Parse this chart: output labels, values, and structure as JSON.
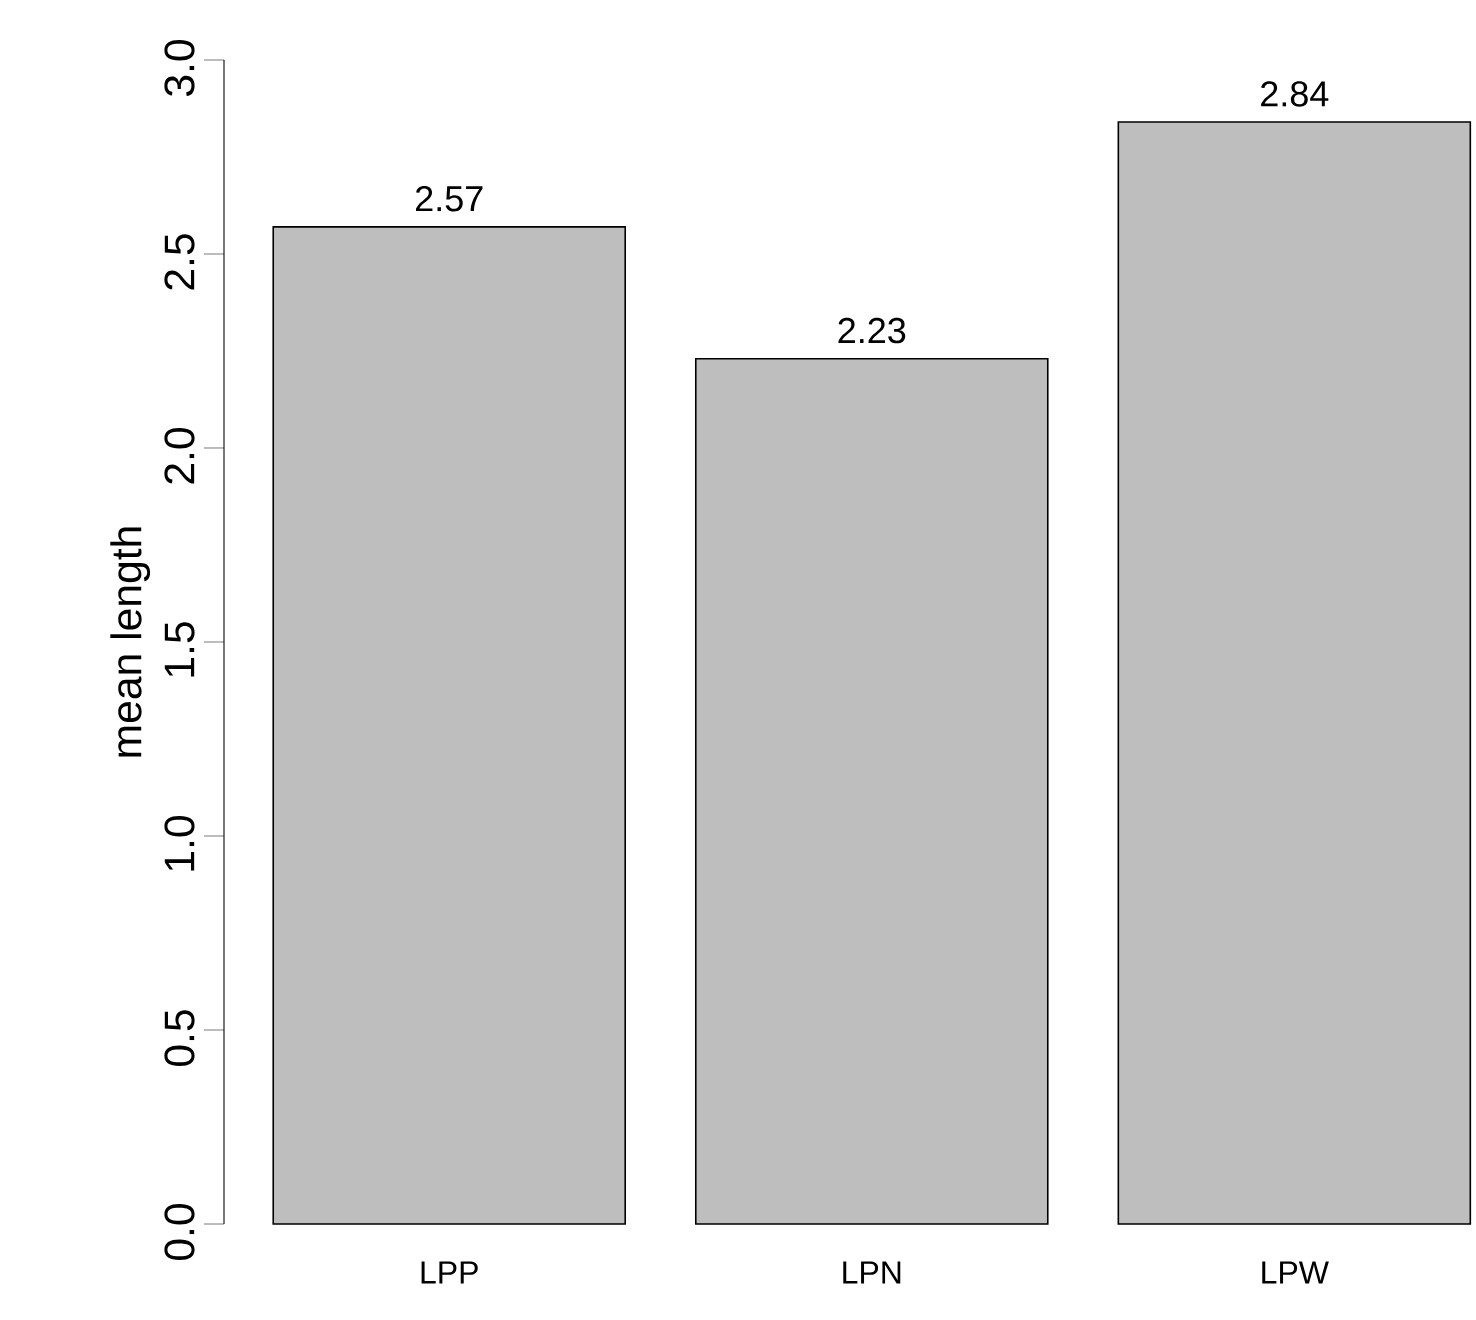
{
  "chart_data": {
    "type": "bar",
    "ylabel": "mean length",
    "categories": [
      "LPP",
      "LPN",
      "LPW"
    ],
    "values": [
      2.57,
      2.23,
      2.84
    ],
    "color": "#bebebe",
    "data_labels": true,
    "ylim": [
      0,
      3
    ],
    "yticks": [
      {
        "value": 0,
        "label": "0.0"
      },
      0.5,
      {
        "value": 1,
        "label": "1.0"
      },
      1.5,
      {
        "value": 2,
        "label": "2.0"
      },
      2.5,
      {
        "value": 3,
        "label": "3.0"
      }
    ]
  }
}
